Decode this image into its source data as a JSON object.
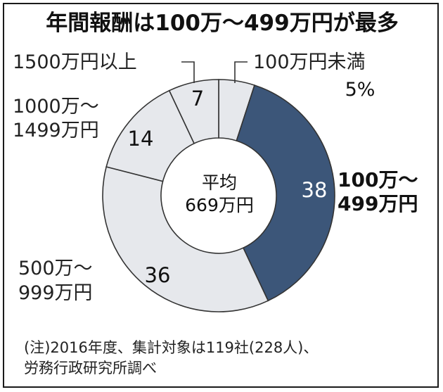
{
  "chart_data": {
    "type": "pie",
    "title": "年間報酬は100万～499万円が最多",
    "slices": [
      {
        "label": "100万円未満",
        "value": 5,
        "value_label": "5%",
        "color": "#e6e8ec"
      },
      {
        "label": "100万～499万円",
        "label_lines": [
          "100万～",
          "499万円"
        ],
        "value": 38,
        "value_label": "38",
        "color": "#3c5679"
      },
      {
        "label": "500万～999万円",
        "label_lines": [
          "500万～",
          "999万円"
        ],
        "value": 36,
        "value_label": "36",
        "color": "#e6e8ec"
      },
      {
        "label": "1000万～1499万円",
        "label_lines": [
          "1000万～",
          "1499万円"
        ],
        "value": 14,
        "value_label": "14",
        "color": "#e6e8ec"
      },
      {
        "label": "1500万円以上",
        "value": 7,
        "value_label": "7",
        "color": "#e6e8ec"
      }
    ],
    "center_label": [
      "平均",
      "669万円"
    ]
  },
  "note": {
    "line1": "(注)2016年度、集計対象は119社(228人)、",
    "line2": "労務行政研究所調べ"
  }
}
